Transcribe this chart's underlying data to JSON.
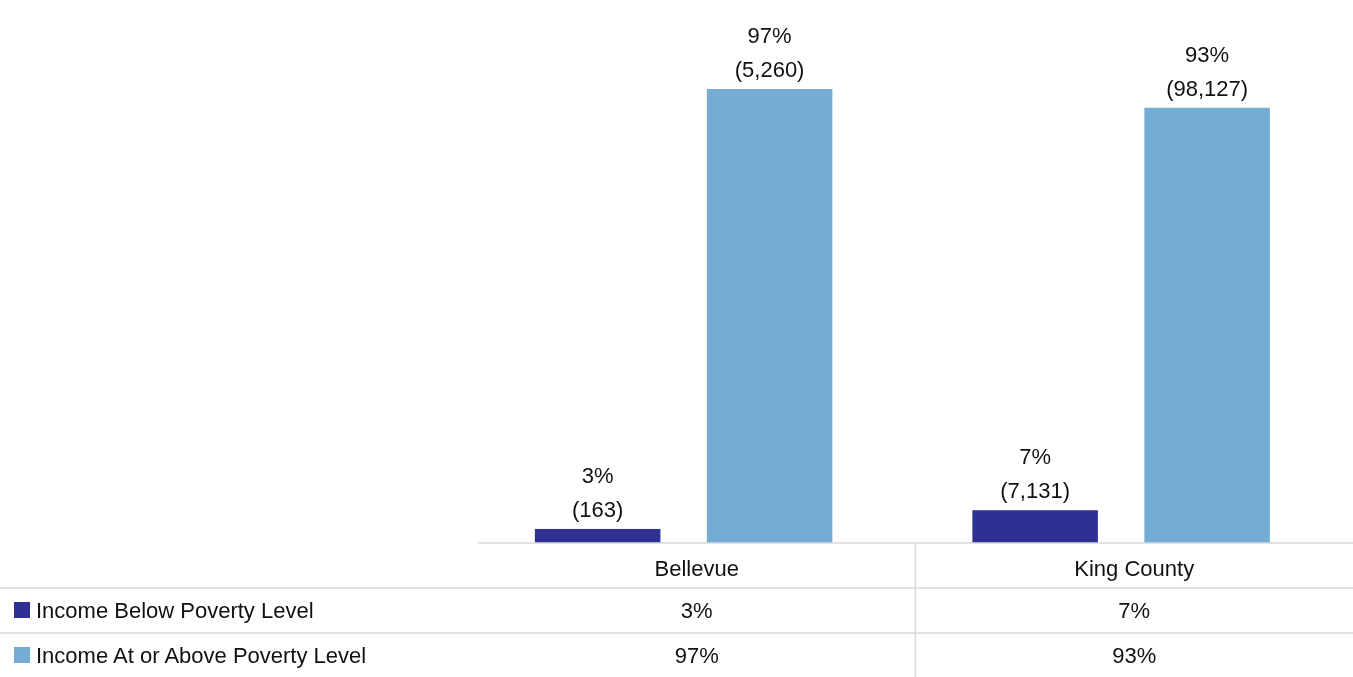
{
  "chart_data": {
    "type": "bar",
    "categories": [
      "Bellevue",
      "King County"
    ],
    "series": [
      {
        "name": "Income Below Poverty Level",
        "color": "#2e3192",
        "values": [
          3,
          7
        ],
        "value_labels": [
          "3%",
          "7%"
        ]
      },
      {
        "name": "Income At or Above Poverty Level",
        "color": "#74acd3",
        "values": [
          97,
          93
        ],
        "value_labels": [
          "97%",
          "93%"
        ]
      }
    ],
    "annotations": [
      "(163)",
      "(5,260)",
      "(7,131)",
      "(98,127)"
    ],
    "legend": "bottom"
  }
}
